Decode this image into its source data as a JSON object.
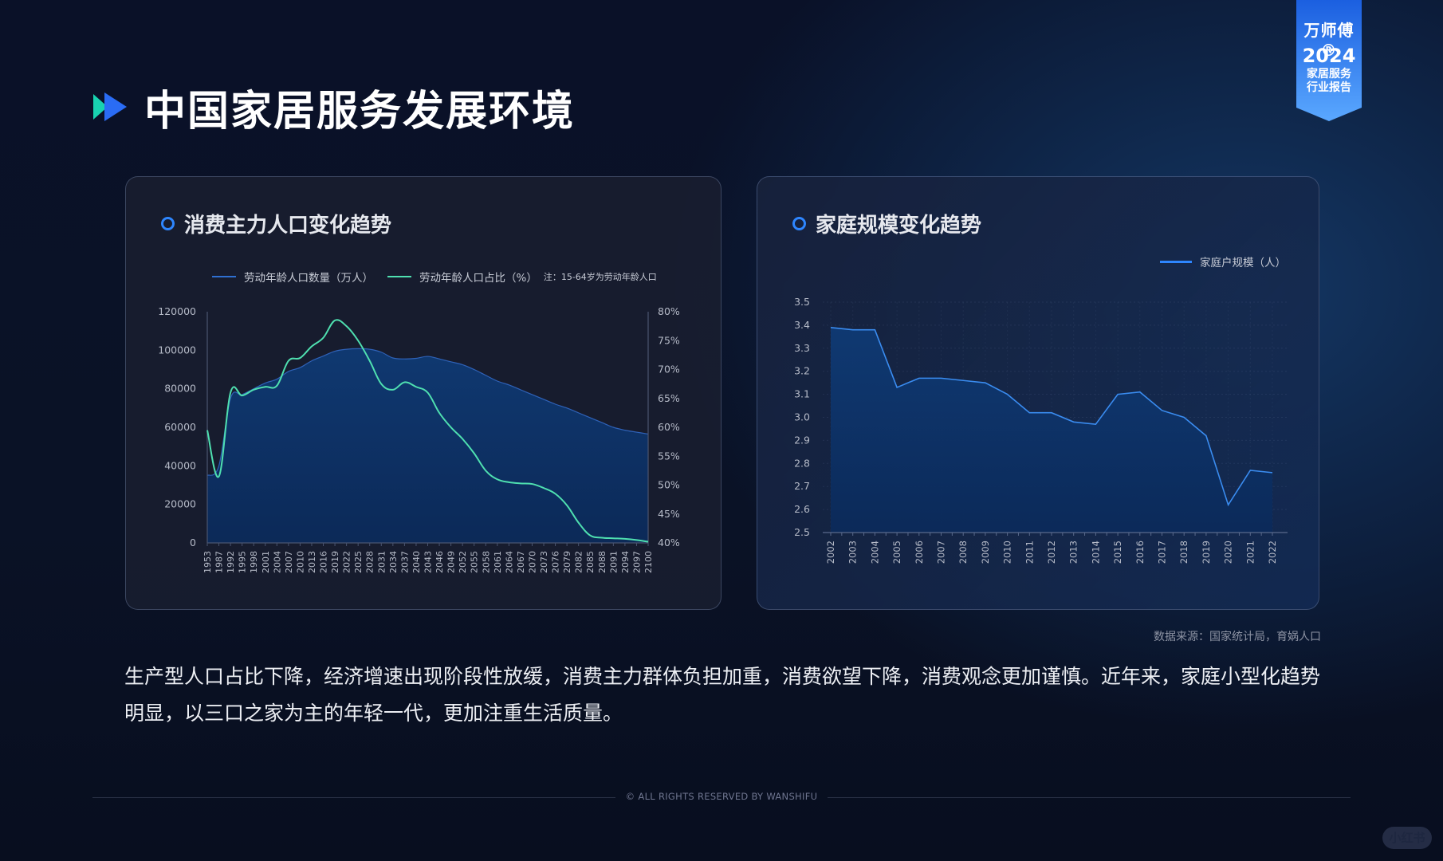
{
  "badge": {
    "brand": "万师傅®",
    "year": "2024",
    "line1": "家居服务",
    "line2": "行业报告",
    "color_top": "#1b5fe0",
    "color_bottom": "#5aa8ff"
  },
  "header": {
    "title": "中国家居服务发展环境",
    "icon": "double-play-icon"
  },
  "left_card": {
    "title": "消费主力人口变化趋势",
    "legend": [
      {
        "label": "劳动年龄人口数量（万人）",
        "color": "#2f6fd1"
      },
      {
        "label": "劳动年龄人口占比（%）",
        "color": "#4fe0b0"
      }
    ],
    "note": "注：15-64岁为劳动年龄人口"
  },
  "right_card": {
    "title": "家庭规模变化趋势",
    "legend": [
      {
        "label": "家庭户规模（人）",
        "color": "#2e86ff"
      }
    ]
  },
  "source": "数据来源：国家统计局，育娲人口",
  "body_text": "生产型人口占比下降，经济增速出现阶段性放缓，消费主力群体负担加重，消费欲望下降，消费观念更加谨慎。近年来，家庭小型化趋势明显，以三口之家为主的年轻一代，更加注重生活质量。",
  "footer": "© ALL RIGHTS RESERVED BY WANSHIFU",
  "watermark": "小红书",
  "chart_data": [
    {
      "type": "area+line",
      "title": "消费主力人口变化趋势",
      "categories": [
        "1953",
        "1987",
        "1992",
        "1995",
        "1998",
        "2001",
        "2004",
        "2007",
        "2010",
        "2013",
        "2016",
        "2019",
        "2022",
        "2025",
        "2028",
        "2031",
        "2034",
        "2037",
        "2040",
        "2043",
        "2046",
        "2049",
        "2052",
        "2055",
        "2058",
        "2061",
        "2064",
        "2067",
        "2070",
        "2073",
        "2076",
        "2079",
        "2082",
        "2085",
        "2088",
        "2091",
        "2094",
        "2097",
        "2100"
      ],
      "series": [
        {
          "name": "劳动年龄人口数量（万人）",
          "type": "area",
          "axis": "left",
          "color": "#2f6fd1",
          "values": [
            35000,
            40000,
            75000,
            77000,
            80000,
            83000,
            85000,
            89000,
            91000,
            94500,
            97000,
            99500,
            100500,
            100800,
            100500,
            99000,
            96000,
            95500,
            95800,
            96800,
            95500,
            94000,
            92500,
            90000,
            87000,
            84000,
            82000,
            79500,
            77000,
            74500,
            72000,
            70000,
            67500,
            65000,
            62500,
            60000,
            58500,
            57500,
            56500
          ]
        },
        {
          "name": "劳动年龄人口占比（%）",
          "type": "line",
          "axis": "right",
          "color": "#4fe0b0",
          "values": [
            59.5,
            51.5,
            66.0,
            65.5,
            66.5,
            67.0,
            67.2,
            71.5,
            72.0,
            74.0,
            75.5,
            78.5,
            77.5,
            75.0,
            71.5,
            67.5,
            66.5,
            67.8,
            67.0,
            66.0,
            62.5,
            60.0,
            58.0,
            55.5,
            52.5,
            51.0,
            50.5,
            50.3,
            50.2,
            49.5,
            48.5,
            46.5,
            43.5,
            41.3,
            40.9,
            40.8,
            40.7,
            40.5,
            40.2
          ]
        }
      ],
      "y_left": {
        "min": 0,
        "max": 120000,
        "ticks": [
          0,
          20000,
          40000,
          60000,
          80000,
          100000,
          120000
        ]
      },
      "y_right": {
        "min": 40,
        "max": 80,
        "ticks": [
          "40%",
          "45%",
          "50%",
          "55%",
          "60%",
          "65%",
          "70%",
          "75%",
          "80%"
        ]
      },
      "legend_position": "top"
    },
    {
      "type": "area",
      "title": "家庭规模变化趋势",
      "categories": [
        "2002",
        "2003",
        "2004",
        "2005",
        "2006",
        "2007",
        "2008",
        "2009",
        "2010",
        "2011",
        "2012",
        "2013",
        "2014",
        "2015",
        "2016",
        "2017",
        "2018",
        "2019",
        "2020",
        "2021",
        "2022"
      ],
      "series": [
        {
          "name": "家庭户规模（人）",
          "color": "#2e86ff",
          "values": [
            3.39,
            3.38,
            3.38,
            3.13,
            3.17,
            3.17,
            3.16,
            3.15,
            3.1,
            3.02,
            3.02,
            2.98,
            2.97,
            3.1,
            3.11,
            3.03,
            3.0,
            2.92,
            2.62,
            2.77,
            2.76
          ]
        }
      ],
      "ylim": [
        2.5,
        3.5
      ],
      "yticks": [
        "2.5",
        "2.6",
        "2.7",
        "2.8",
        "2.9",
        "3.0",
        "3.1",
        "3.2",
        "3.3",
        "3.4",
        "3.5"
      ],
      "grid": true,
      "legend_position": "top-right"
    }
  ]
}
